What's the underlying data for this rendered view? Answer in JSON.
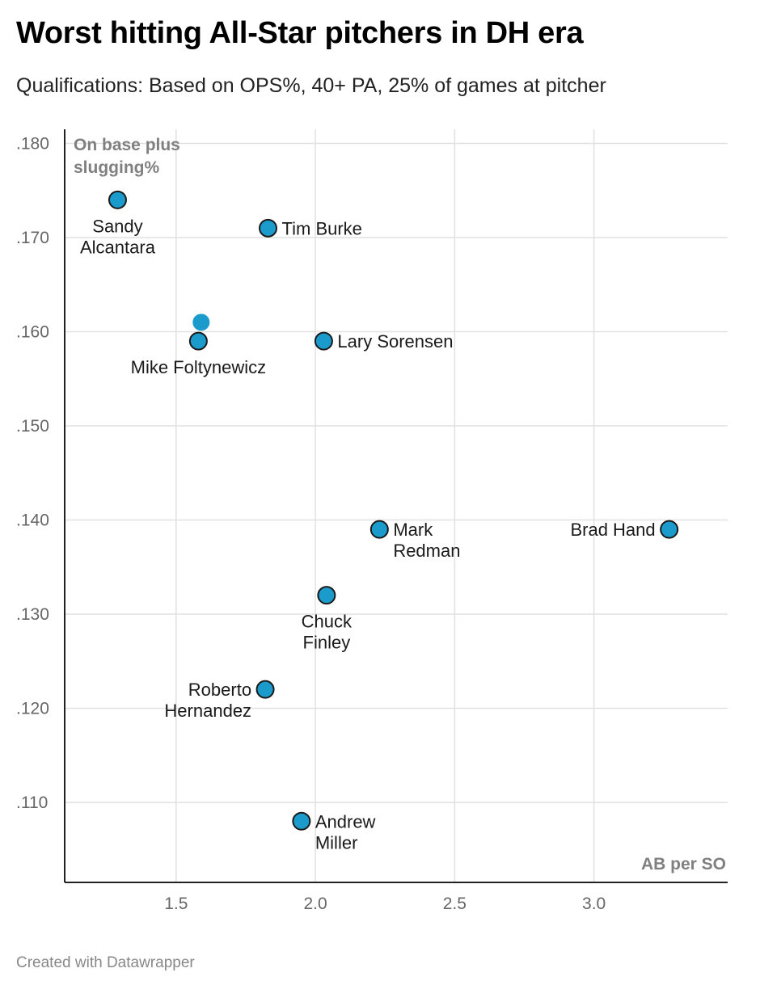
{
  "header": {
    "title": "Worst hitting All-Star pitchers in DH era",
    "subtitle": "Qualifications: Based on OPS%, 40+ PA, 25% of games at pitcher"
  },
  "footer": {
    "credit": "Created with Datawrapper"
  },
  "chart_data": {
    "type": "scatter",
    "title": "Worst hitting All-Star pitchers in DH era",
    "subtitle": "Qualifications: Based on OPS%, 40+ PA, 25% of games at pitcher",
    "xlabel": "AB per SO",
    "ylabel": [
      "On base plus",
      "slugging%"
    ],
    "xlim": [
      1.1,
      3.48
    ],
    "ylim": [
      0.1015,
      0.1815
    ],
    "x_ticks": [
      1.5,
      2.0,
      2.5,
      3.0
    ],
    "x_tick_labels": [
      "1.5",
      "2.0",
      "2.5",
      "3.0"
    ],
    "y_ticks": [
      0.11,
      0.12,
      0.13,
      0.14,
      0.15,
      0.16,
      0.17,
      0.18
    ],
    "y_tick_labels": [
      ".110",
      ".120",
      ".130",
      ".140",
      ".150",
      ".160",
      ".170",
      ".180"
    ],
    "grid": true,
    "point_color": "#1b9bcc",
    "points": [
      {
        "name": "Sandy Alcantara",
        "label_lines": [
          "Sandy",
          "Alcantara"
        ],
        "label_position": "below",
        "x": 1.29,
        "y": 0.174
      },
      {
        "name": "Tim Burke",
        "label_lines": [
          "Tim Burke"
        ],
        "label_position": "right",
        "x": 1.83,
        "y": 0.171
      },
      {
        "name": "",
        "label_lines": [],
        "label_position": "none",
        "outline": false,
        "x": 1.59,
        "y": 0.161
      },
      {
        "name": "Mike Foltynewicz",
        "label_lines": [
          "Mike Foltynewicz"
        ],
        "label_position": "below",
        "x": 1.58,
        "y": 0.159
      },
      {
        "name": "Lary Sorensen",
        "label_lines": [
          "Lary Sorensen"
        ],
        "label_position": "right",
        "x": 2.03,
        "y": 0.159
      },
      {
        "name": "Mark Redman",
        "label_lines": [
          "Mark",
          "Redman"
        ],
        "label_position": "right",
        "x": 2.23,
        "y": 0.139
      },
      {
        "name": "Brad Hand",
        "label_lines": [
          "Brad Hand"
        ],
        "label_position": "left",
        "x": 3.27,
        "y": 0.139
      },
      {
        "name": "Chuck Finley",
        "label_lines": [
          "Chuck",
          "Finley"
        ],
        "label_position": "below",
        "x": 2.04,
        "y": 0.132
      },
      {
        "name": "Roberto Hernandez",
        "label_lines": [
          "Roberto",
          "Hernandez"
        ],
        "label_position": "left",
        "x": 1.82,
        "y": 0.122
      },
      {
        "name": "Andrew Miller",
        "label_lines": [
          "Andrew",
          "Miller"
        ],
        "label_position": "right",
        "x": 1.95,
        "y": 0.108
      }
    ]
  }
}
